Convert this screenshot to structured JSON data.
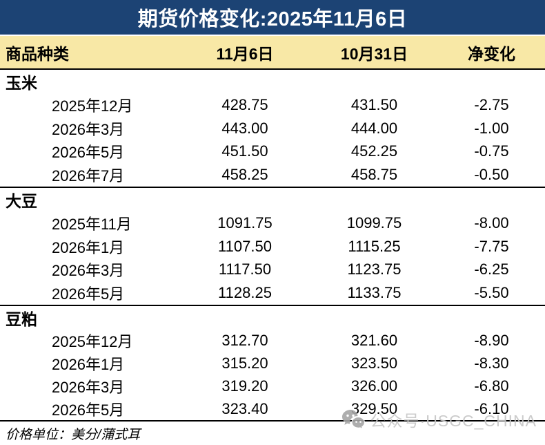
{
  "title": "期货价格变化:2025年11月6日",
  "table": {
    "columns": [
      "商品种类",
      "11月6日",
      "10月31日",
      "净变化"
    ],
    "sections": [
      {
        "name": "玉米",
        "rows": [
          {
            "month": "2025年12月",
            "nov6": "428.75",
            "oct31": "431.50",
            "change": "-2.75"
          },
          {
            "month": "2026年3月",
            "nov6": "443.00",
            "oct31": "444.00",
            "change": "-1.00"
          },
          {
            "month": "2026年5月",
            "nov6": "451.50",
            "oct31": "452.25",
            "change": "-0.75"
          },
          {
            "month": "2026年7月",
            "nov6": "458.25",
            "oct31": "458.75",
            "change": "-0.50"
          }
        ]
      },
      {
        "name": "大豆",
        "rows": [
          {
            "month": "2025年11月",
            "nov6": "1091.75",
            "oct31": "1099.75",
            "change": "-8.00"
          },
          {
            "month": "2026年1月",
            "nov6": "1107.50",
            "oct31": "1115.25",
            "change": "-7.75"
          },
          {
            "month": "2026年3月",
            "nov6": "1117.50",
            "oct31": "1123.75",
            "change": "-6.25"
          },
          {
            "month": "2026年5月",
            "nov6": "1128.25",
            "oct31": "1133.75",
            "change": "-5.50"
          }
        ]
      },
      {
        "name": "豆粕",
        "rows": [
          {
            "month": "2025年12月",
            "nov6": "312.70",
            "oct31": "321.60",
            "change": "-8.90"
          },
          {
            "month": "2026年1月",
            "nov6": "315.20",
            "oct31": "323.50",
            "change": "-8.30"
          },
          {
            "month": "2026年3月",
            "nov6": "319.20",
            "oct31": "326.00",
            "change": "-6.80"
          },
          {
            "month": "2026年5月",
            "nov6": "323.40",
            "oct31": "329.50",
            "change": "-6.10"
          }
        ]
      }
    ]
  },
  "footer": {
    "unit_note": "价格单位：美分/蒲式耳"
  },
  "watermark": {
    "icon": "wechat-icon",
    "text": "公众号·USGC_CHINA"
  },
  "colors": {
    "title_bar_bg": "#1c4374",
    "title_text": "#ffffff",
    "header_bg": "#f8e8a6",
    "body_text": "#000000",
    "watermark_gray": "#c6c6c6"
  },
  "chart_data": {
    "type": "table",
    "title": "期货价格变化:2025年11月6日",
    "columns": [
      "商品种类",
      "11月6日",
      "10月31日",
      "净变化"
    ],
    "unit": "美分/蒲式耳",
    "sections": [
      {
        "commodity": "玉米",
        "contracts": [
          {
            "month": "2025年12月",
            "nov6": 428.75,
            "oct31": 431.5,
            "net_change": -2.75
          },
          {
            "month": "2026年3月",
            "nov6": 443.0,
            "oct31": 444.0,
            "net_change": -1.0
          },
          {
            "month": "2026年5月",
            "nov6": 451.5,
            "oct31": 452.25,
            "net_change": -0.75
          },
          {
            "month": "2026年7月",
            "nov6": 458.25,
            "oct31": 458.75,
            "net_change": -0.5
          }
        ]
      },
      {
        "commodity": "大豆",
        "contracts": [
          {
            "month": "2025年11月",
            "nov6": 1091.75,
            "oct31": 1099.75,
            "net_change": -8.0
          },
          {
            "month": "2026年1月",
            "nov6": 1107.5,
            "oct31": 1115.25,
            "net_change": -7.75
          },
          {
            "month": "2026年3月",
            "nov6": 1117.5,
            "oct31": 1123.75,
            "net_change": -6.25
          },
          {
            "month": "2026年5月",
            "nov6": 1128.25,
            "oct31": 1133.75,
            "net_change": -5.5
          }
        ]
      },
      {
        "commodity": "豆粕",
        "contracts": [
          {
            "month": "2025年12月",
            "nov6": 312.7,
            "oct31": 321.6,
            "net_change": -8.9
          },
          {
            "month": "2026年1月",
            "nov6": 315.2,
            "oct31": 323.5,
            "net_change": -8.3
          },
          {
            "month": "2026年3月",
            "nov6": 319.2,
            "oct31": 326.0,
            "net_change": -6.8
          },
          {
            "month": "2026年5月",
            "nov6": 323.4,
            "oct31": 329.5,
            "net_change": -6.1
          }
        ]
      }
    ]
  }
}
